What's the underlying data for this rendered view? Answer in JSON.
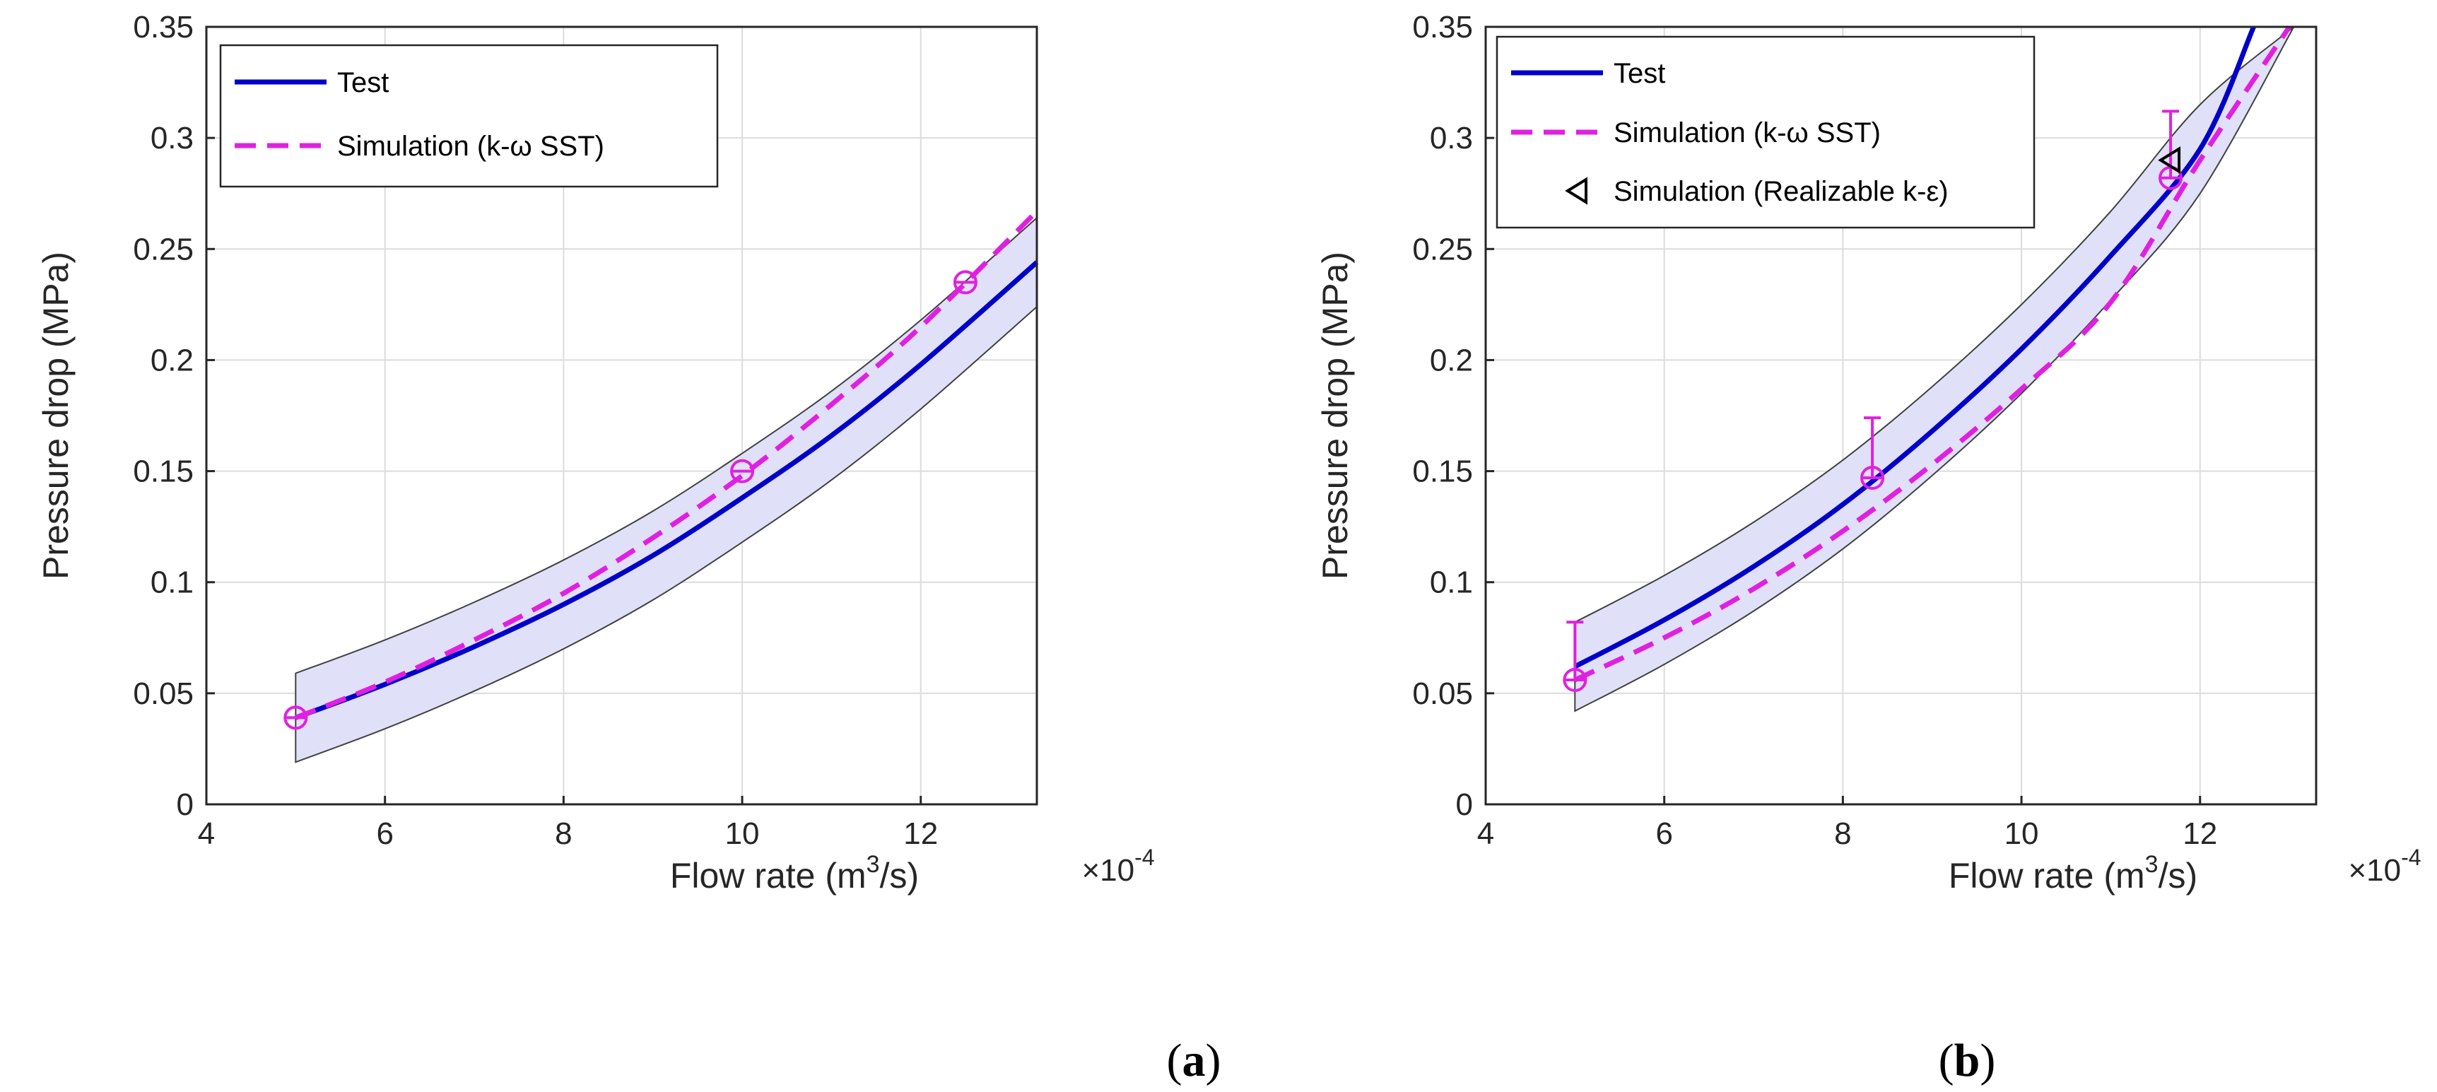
{
  "chart_data": [
    {
      "type": "line",
      "panel_label": "a",
      "xlabel": "Flow rate (m3/s)",
      "xlabel_parts": {
        "base": "Flow rate (m",
        "sup": "3",
        "tail": "/s)"
      },
      "ylabel": "Pressure drop (MPa)",
      "x_multiplier": "×10-4",
      "x_multiplier_parts": {
        "base": "×10",
        "sup": "-4"
      },
      "xlim": [
        4,
        13.3
      ],
      "ylim": [
        0,
        0.35
      ],
      "xticks": [
        4,
        6,
        8,
        10,
        12
      ],
      "xtick_labels": [
        "4",
        "6",
        "8",
        "10",
        "12"
      ],
      "yticks": [
        0,
        0.05,
        0.1,
        0.15,
        0.2,
        0.25,
        0.3,
        0.35
      ],
      "ytick_labels": [
        "0",
        "0.05",
        "0.1",
        "0.15",
        "0.2",
        "0.25",
        "0.3",
        "0.35"
      ],
      "grid": true,
      "legend_position": "top-left",
      "series": [
        {
          "name": "Test",
          "style": "solid",
          "color": "#0000c8",
          "x": [
            5.0,
            6.0,
            7.0,
            8.0,
            9.0,
            10.0,
            11.0,
            12.0,
            13.3
          ],
          "y": [
            0.039,
            0.054,
            0.071,
            0.09,
            0.112,
            0.138,
            0.166,
            0.198,
            0.244
          ]
        },
        {
          "name": "Simulation (k-ω SST)",
          "style": "dashed",
          "color": "#e020e0",
          "x": [
            5.0,
            6.0,
            7.0,
            8.0,
            9.0,
            10.0,
            11.0,
            12.0,
            13.3
          ],
          "y": [
            0.039,
            0.055,
            0.074,
            0.095,
            0.12,
            0.148,
            0.18,
            0.215,
            0.267
          ]
        }
      ],
      "band": {
        "color": "#e0e0f8",
        "x": [
          5.0,
          6.0,
          7.0,
          8.0,
          9.0,
          10.0,
          11.0,
          12.0,
          13.3
        ],
        "upper": [
          0.059,
          0.074,
          0.091,
          0.11,
          0.132,
          0.158,
          0.186,
          0.218,
          0.264
        ],
        "lower": [
          0.019,
          0.034,
          0.051,
          0.07,
          0.092,
          0.118,
          0.146,
          0.178,
          0.224
        ]
      },
      "markers": [
        {
          "series": "Simulation (k-ω SST)",
          "shape": "circle",
          "x": 5.0,
          "y": 0.039
        },
        {
          "series": "Simulation (k-ω SST)",
          "shape": "circle",
          "x": 10.0,
          "y": 0.15
        },
        {
          "series": "Simulation (k-ω SST)",
          "shape": "circle",
          "x": 12.5,
          "y": 0.235
        }
      ],
      "legend": [
        {
          "label": "Test",
          "style": "solid",
          "color": "#0000c8"
        },
        {
          "label": "Simulation (k-ω SST)",
          "style": "dashed",
          "color": "#e020e0"
        }
      ]
    },
    {
      "type": "line",
      "panel_label": "b",
      "xlabel": "Flow rate (m3/s)",
      "xlabel_parts": {
        "base": "Flow rate (m",
        "sup": "3",
        "tail": "/s)"
      },
      "ylabel": "Pressure drop (MPa)",
      "x_multiplier": "×10-4",
      "x_multiplier_parts": {
        "base": "×10",
        "sup": "-4"
      },
      "xlim": [
        4,
        13.3
      ],
      "ylim": [
        0,
        0.35
      ],
      "xticks": [
        4,
        6,
        8,
        10,
        12
      ],
      "xtick_labels": [
        "4",
        "6",
        "8",
        "10",
        "12"
      ],
      "yticks": [
        0,
        0.05,
        0.1,
        0.15,
        0.2,
        0.25,
        0.3,
        0.35
      ],
      "ytick_labels": [
        "0",
        "0.05",
        "0.1",
        "0.15",
        "0.2",
        "0.25",
        "0.3",
        "0.35"
      ],
      "grid": true,
      "legend_position": "top-left",
      "series": [
        {
          "name": "Test",
          "style": "solid",
          "color": "#0000c8",
          "x": [
            5.0,
            6.0,
            7.0,
            8.0,
            9.0,
            10.0,
            11.0,
            12.0,
            12.6
          ],
          "y": [
            0.062,
            0.083,
            0.107,
            0.135,
            0.168,
            0.205,
            0.247,
            0.295,
            0.35
          ]
        },
        {
          "name": "Simulation (k-ω SST)",
          "style": "dashed",
          "color": "#e020e0",
          "x": [
            5.0,
            6.0,
            7.0,
            8.0,
            9.0,
            10.0,
            11.0,
            12.0,
            13.0
          ],
          "y": [
            0.056,
            0.075,
            0.097,
            0.123,
            0.153,
            0.187,
            0.226,
            0.29,
            0.35
          ]
        }
      ],
      "band": {
        "color": "#e0e0f8",
        "x": [
          5.0,
          6.0,
          7.0,
          8.0,
          9.0,
          10.0,
          11.0,
          12.0,
          13.05
        ],
        "upper": [
          0.082,
          0.103,
          0.127,
          0.155,
          0.188,
          0.225,
          0.267,
          0.315,
          0.35
        ],
        "lower": [
          0.042,
          0.063,
          0.087,
          0.115,
          0.148,
          0.185,
          0.227,
          0.275,
          0.35
        ]
      },
      "markers": [
        {
          "series": "Simulation (k-ω SST)",
          "shape": "circle",
          "x": 5.0,
          "y": 0.056,
          "error_top": 0.082
        },
        {
          "series": "Simulation (k-ω SST)",
          "shape": "circle",
          "x": 8.33,
          "y": 0.147,
          "error_top": 0.174
        },
        {
          "series": "Simulation (k-ω SST)",
          "shape": "circle",
          "x": 11.67,
          "y": 0.282,
          "error_top": 0.312
        },
        {
          "series": "Simulation (Realizable k-ε)",
          "shape": "triangle-left",
          "x": 11.67,
          "y": 0.29
        }
      ],
      "legend": [
        {
          "label": "Test",
          "style": "solid",
          "color": "#0000c8"
        },
        {
          "label": "Simulation (k-ω SST)",
          "style": "dashed",
          "color": "#e020e0"
        },
        {
          "label": "Simulation (Realizable k-ε)",
          "style": "marker-triangle-left",
          "color": "#000000"
        }
      ]
    }
  ]
}
